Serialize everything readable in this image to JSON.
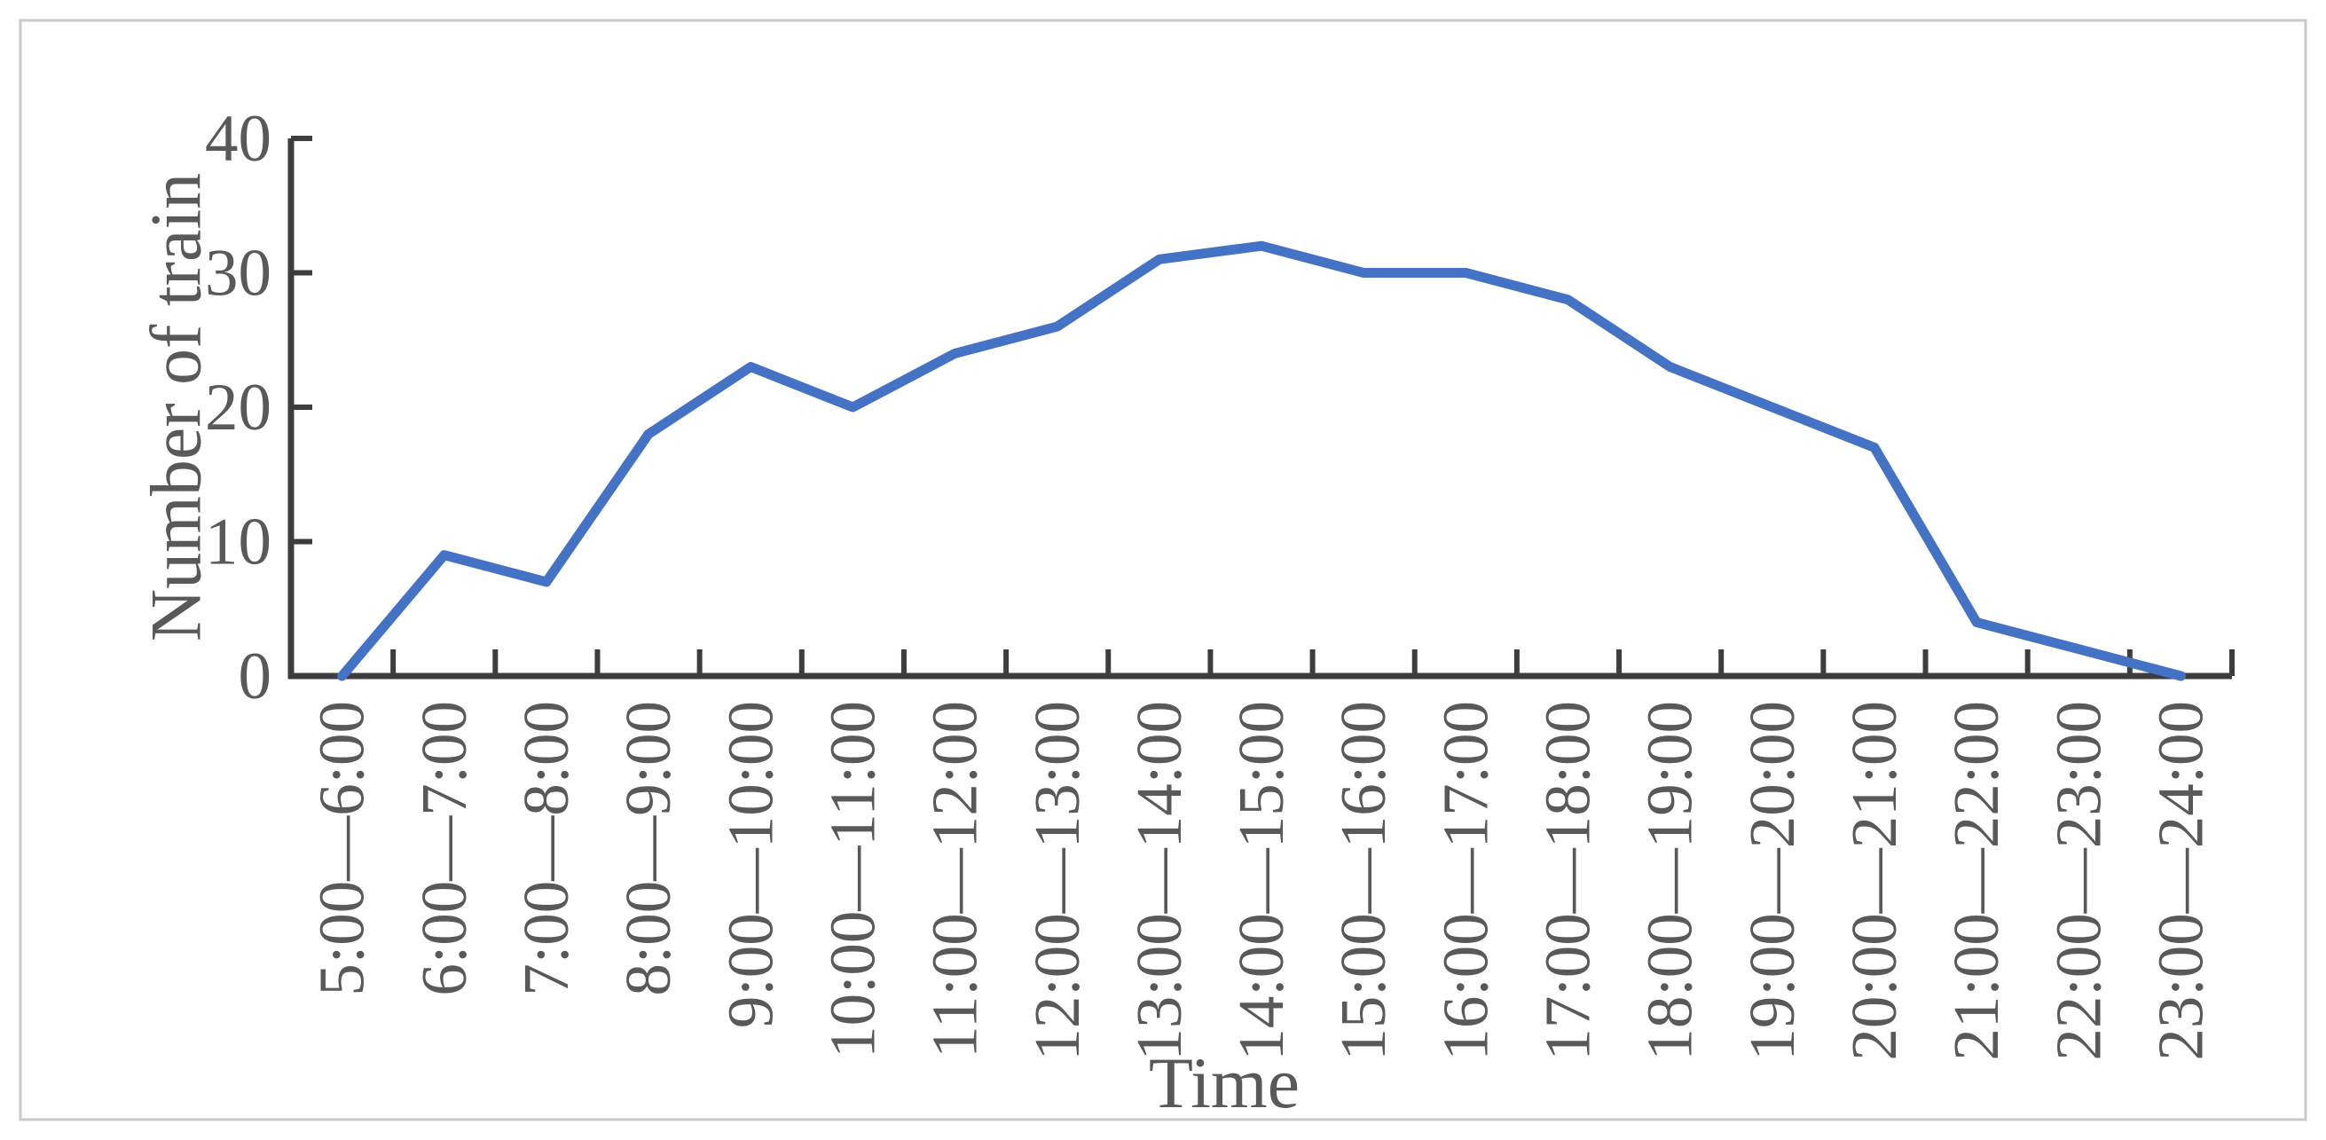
{
  "figure": {
    "background": "#ffffff",
    "border_color": "#c9c9c9"
  },
  "chart_data": {
    "type": "line",
    "title": "",
    "xlabel": "Time",
    "ylabel": "Number of train",
    "categories": [
      "5:00—6:00",
      "6:00—7:00",
      "7:00—8:00",
      "8:00—9:00",
      "9:00—10:00",
      "10:00—11:00",
      "11:00—12:00",
      "12:00—13:00",
      "13:00—14:00",
      "14:00—15:00",
      "15:00—16:00",
      "16:00—17:00",
      "17:00—18:00",
      "18:00—19:00",
      "19:00—20:00",
      "20:00—21:00",
      "21:00—22:00",
      "22:00—23:00",
      "23:00—24:00"
    ],
    "series": [
      {
        "name": "Number of train",
        "values": [
          0,
          9,
          7,
          18,
          23,
          20,
          24,
          26,
          31,
          32,
          30,
          30,
          28,
          23,
          20,
          17,
          4,
          2,
          0
        ]
      }
    ],
    "ylim": [
      0,
      40
    ],
    "yticks": [
      0,
      10,
      20,
      30,
      40
    ],
    "grid": false,
    "legend": "none",
    "line_color": "#4472C4",
    "axis_color": "#3d3d3d",
    "text_color": "#595959"
  }
}
